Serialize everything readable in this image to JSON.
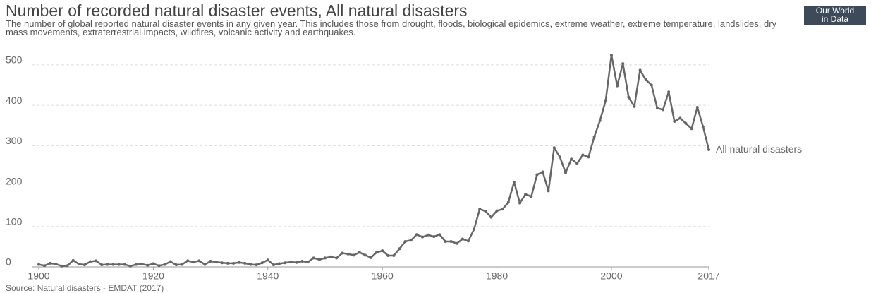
{
  "chart_data": {
    "type": "line",
    "title": "Number of recorded natural disaster events, All natural disasters",
    "subtitle": "The number of global reported natural disaster events in any given year. This includes those from drought, floods, biological epidemics, extreme weather, extreme temperature, landslides, dry mass movements, extraterrestrial impacts, wildfires, volcanic activity and earthquakes.",
    "logo": [
      "Our World",
      "in Data"
    ],
    "source": "Source: Natural disasters - EMDAT (2017)",
    "x": [
      1900,
      1901,
      1902,
      1903,
      1904,
      1905,
      1906,
      1907,
      1908,
      1909,
      1910,
      1911,
      1912,
      1913,
      1914,
      1915,
      1916,
      1917,
      1918,
      1919,
      1920,
      1921,
      1922,
      1923,
      1924,
      1925,
      1926,
      1927,
      1928,
      1929,
      1930,
      1931,
      1932,
      1933,
      1934,
      1935,
      1936,
      1937,
      1938,
      1939,
      1940,
      1941,
      1942,
      1943,
      1944,
      1945,
      1946,
      1947,
      1948,
      1949,
      1950,
      1951,
      1952,
      1953,
      1954,
      1955,
      1956,
      1957,
      1958,
      1959,
      1960,
      1961,
      1962,
      1963,
      1964,
      1965,
      1966,
      1967,
      1968,
      1969,
      1970,
      1971,
      1972,
      1973,
      1974,
      1975,
      1976,
      1977,
      1978,
      1979,
      1980,
      1981,
      1982,
      1983,
      1984,
      1985,
      1986,
      1987,
      1988,
      1989,
      1990,
      1991,
      1992,
      1993,
      1994,
      1995,
      1996,
      1997,
      1998,
      1999,
      2000,
      2001,
      2002,
      2003,
      2004,
      2005,
      2006,
      2007,
      2008,
      2009,
      2010,
      2011,
      2012,
      2013,
      2014,
      2015,
      2016,
      2017
    ],
    "series": [
      {
        "name": "All natural disasters",
        "color": "#666666",
        "values": [
          6,
          3,
          9,
          7,
          2,
          3,
          16,
          7,
          5,
          13,
          15,
          5,
          6,
          6,
          6,
          6,
          2,
          6,
          7,
          4,
          8,
          3,
          6,
          13,
          5,
          6,
          15,
          12,
          15,
          6,
          14,
          12,
          10,
          9,
          9,
          11,
          9,
          6,
          5,
          10,
          17,
          5,
          8,
          10,
          12,
          11,
          14,
          12,
          22,
          18,
          22,
          25,
          22,
          34,
          32,
          29,
          36,
          29,
          23,
          36,
          40,
          28,
          28,
          45,
          63,
          66,
          80,
          74,
          79,
          75,
          80,
          63,
          63,
          58,
          69,
          64,
          93,
          143,
          138,
          123,
          139,
          143,
          160,
          210,
          158,
          180,
          174,
          228,
          235,
          188,
          295,
          272,
          233,
          267,
          256,
          277,
          272,
          322,
          362,
          412,
          524,
          448,
          503,
          420,
          397,
          487,
          463,
          450,
          393,
          389,
          433,
          360,
          368,
          355,
          342,
          395,
          347,
          290
        ]
      }
    ],
    "xlim": [
      1900,
      2017
    ],
    "xticks": [
      1900,
      1920,
      1940,
      1960,
      1980,
      2000,
      2017
    ],
    "ylim": [
      0,
      540
    ],
    "yticks": [
      0,
      100,
      200,
      300,
      400,
      500
    ],
    "grid": true
  }
}
